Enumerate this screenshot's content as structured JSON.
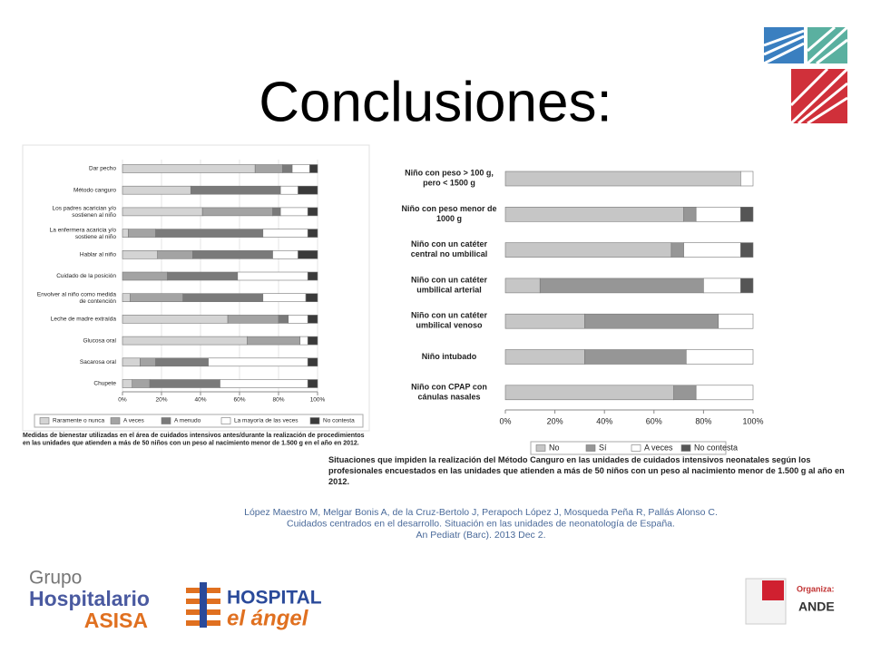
{
  "title": "Conclusiones:",
  "chart_data": [
    {
      "type": "bar",
      "stacked": true,
      "orientation": "horizontal",
      "categories": [
        "Dar pecho",
        "Método canguro",
        "Los padres acarician y/o\nsostienen al niño",
        "La enfermera acaricia y/o\nsostiene al niño",
        "Hablar al niño",
        "Cuidado de la posición",
        "Envolver al niño como medida\nde contención",
        "Leche de madre extraída",
        "Glucosa oral",
        "Sacarosa oral",
        "Chupete"
      ],
      "series": [
        {
          "name": "Raramente o nunca",
          "color": "#d4d4d4",
          "values": [
            68,
            35,
            41,
            3,
            18,
            0,
            4,
            54,
            64,
            9,
            5
          ]
        },
        {
          "name": "A veces",
          "color": "#a3a3a3",
          "values": [
            14,
            0,
            36,
            14,
            18,
            23,
            27,
            26,
            27,
            8,
            9
          ]
        },
        {
          "name": "A menudo",
          "color": "#7a7a7a",
          "values": [
            5,
            46,
            4,
            55,
            41,
            36,
            41,
            5,
            0,
            27,
            36
          ]
        },
        {
          "name": "La mayoría de las veces",
          "color": "#ffffff",
          "values": [
            9,
            9,
            14,
            23,
            13,
            36,
            22,
            10,
            4,
            51,
            45
          ]
        },
        {
          "name": "No contesta",
          "color": "#3a3a3a",
          "values": [
            4,
            10,
            5,
            5,
            10,
            5,
            6,
            5,
            5,
            5,
            5
          ]
        }
      ],
      "xlim": [
        0,
        100
      ],
      "xticks": [
        {
          "value": 0,
          "label": "0%"
        },
        {
          "value": 20,
          "label": "20%"
        },
        {
          "value": 40,
          "label": "40%"
        },
        {
          "value": 60,
          "label": "60%"
        },
        {
          "value": 80,
          "label": "80%"
        },
        {
          "value": 100,
          "label": "100%"
        }
      ],
      "grid": true,
      "caption": "Medidas de bienestar utilizadas en el área de cuidados intensivos antes/durante la realización de procedimientos\nen las unidades que atienden a más de 50 niños con un peso al nacimiento menor de 1.500 g en el año en 2012."
    },
    {
      "type": "bar",
      "stacked": true,
      "orientation": "horizontal",
      "categories": [
        "Niño con peso > 100 g,\npero < 1500 g",
        "Niño con peso menor de\n1000 g",
        "Niño con un catéter\ncentral no umbilical",
        "Niño con un catéter\numbilical arterial",
        "Niño con un catéter\numbilical venoso",
        "Niño intubado",
        "Niño con CPAP con\ncánulas nasales"
      ],
      "series": [
        {
          "name": "No",
          "color": "#c6c6c6",
          "values": [
            95,
            72,
            67,
            14,
            32,
            32,
            68
          ]
        },
        {
          "name": "Sí",
          "color": "#969696",
          "values": [
            0,
            5,
            5,
            66,
            54,
            41,
            9
          ]
        },
        {
          "name": "A veces",
          "color": "#ffffff",
          "values": [
            5,
            18,
            23,
            15,
            14,
            27,
            23
          ]
        },
        {
          "name": "No contesta",
          "color": "#555555",
          "values": [
            0,
            5,
            5,
            5,
            0,
            0,
            0
          ]
        }
      ],
      "xlim": [
        0,
        100
      ],
      "xticks": [
        {
          "value": 0,
          "label": "0%"
        },
        {
          "value": 20,
          "label": "20%"
        },
        {
          "value": 40,
          "label": "40%"
        },
        {
          "value": 60,
          "label": "60%"
        },
        {
          "value": 80,
          "label": "80%"
        },
        {
          "value": 100,
          "label": "100%"
        }
      ],
      "grid": false,
      "caption": "Situaciones que impiden la realización del Método Canguro en las unidades de cuidados intensivos neonatales según los\nprofesionales encuestados en las unidades que atienden a más de 50 niños con un peso al nacimiento menor de 1.500 g al año en\n2012."
    }
  ],
  "citation": "López Maestro M, Melgar Bonis A, de la Cruz-Bertolo J, Perapoch López J, Mosqueda Peña R, Pallás Alonso C.\nCuidados centrados en el desarrollo. Situación en las unidades de neonatología de España.\nAn Pediatr (Barc). 2013 Dec 2.",
  "logos": {
    "group": "Grupo",
    "hospitalario": "Hospitalario",
    "asisa": "ASISA",
    "hospital": "HOSPITAL",
    "angel": "el ángel",
    "organiza": "Organiza:",
    "ande": "ANDE"
  }
}
